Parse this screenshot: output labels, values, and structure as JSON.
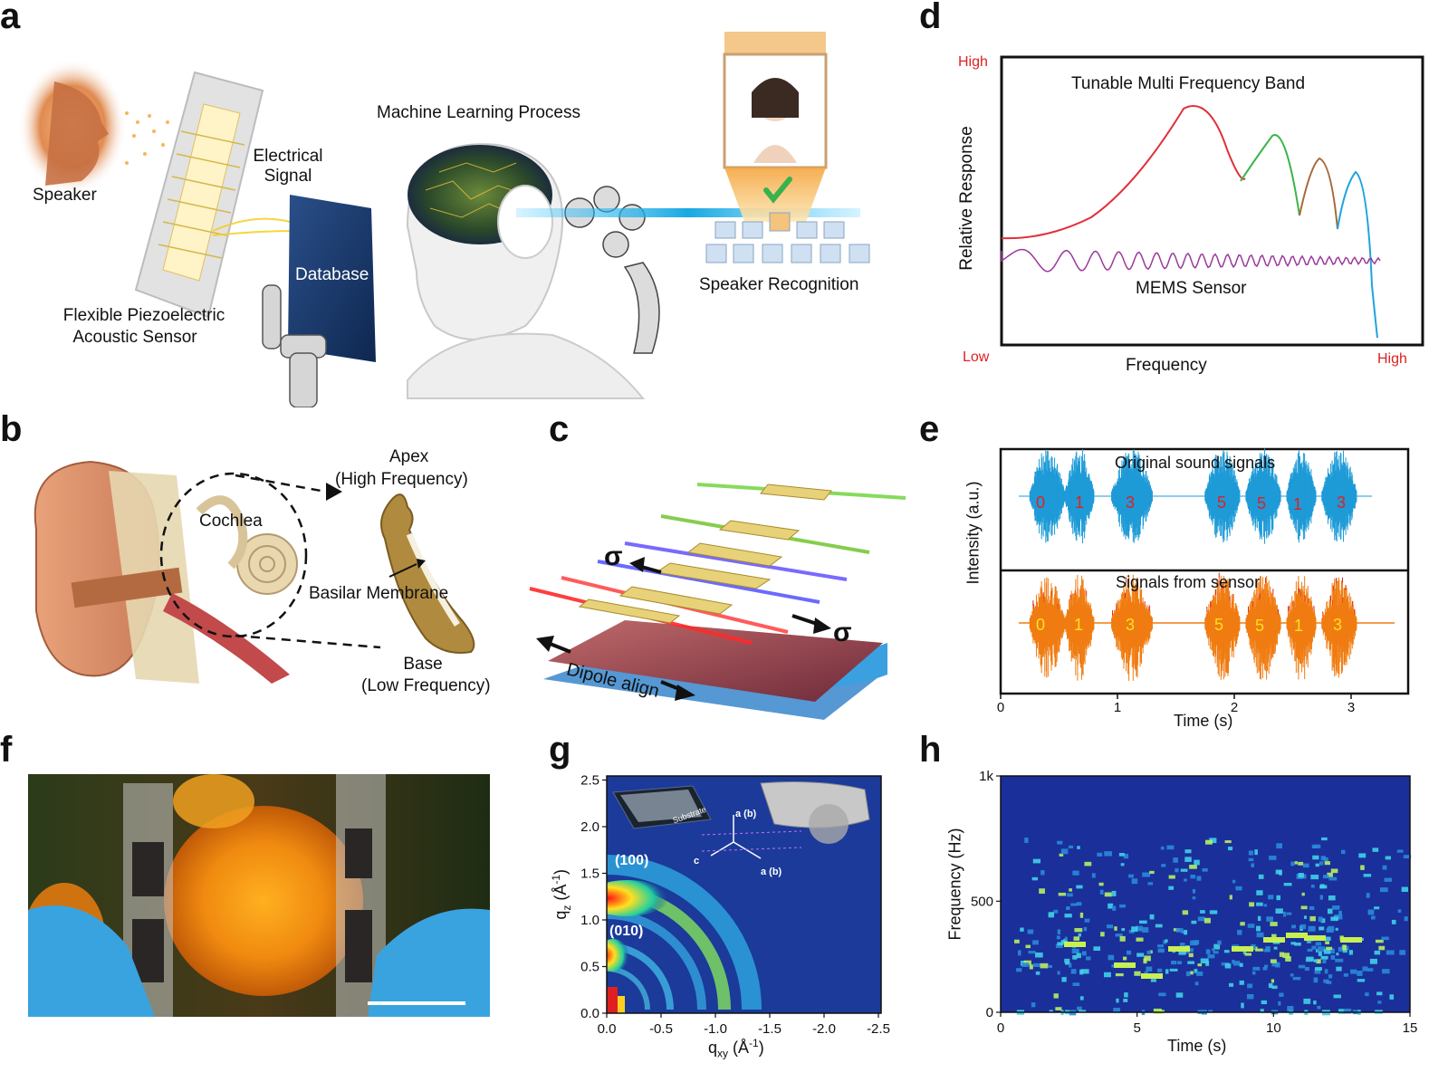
{
  "panels": {
    "a": {
      "letter": "a",
      "speaker": "Speaker",
      "sensor_line1": "Flexible Piezoelectric",
      "sensor_line2": "Acoustic Sensor",
      "signal_line1": "Electrical",
      "signal_line2": "Signal",
      "database": "Database",
      "ml": "Machine Learning Process",
      "recognition": "Speaker Recognition"
    },
    "b": {
      "letter": "b",
      "apex_line1": "Apex",
      "apex_line2": "(High Frequency)",
      "cochlea": "Cochlea",
      "basilar": "Basilar Membrane",
      "base_line1": "Base",
      "base_line2": "(Low Frequency)"
    },
    "c": {
      "letter": "c",
      "sigma_left": "σ",
      "sigma_right": "σ",
      "dipole": "Dipole align"
    },
    "d": {
      "letter": "d",
      "y_high": "High",
      "y_low": "Low",
      "x_high": "High",
      "ylabel": "Relative Response",
      "xlabel": "Frequency",
      "curve1": "Tunable Multi Frequency Band",
      "curve2": "MEMS Sensor"
    },
    "e": {
      "letter": "e",
      "top_title": "Original sound signals",
      "bottom_title": "Signals from sensor",
      "ylabel": "Intensity (a.u.)",
      "xlabel": "Time (s)",
      "xticks": [
        "0",
        "1",
        "2",
        "3"
      ],
      "digits": [
        "0",
        "1",
        "3",
        "5",
        "5",
        "1",
        "3"
      ],
      "color_original": "#1e9bd7",
      "color_sensor": "#f07c12"
    },
    "f": {
      "letter": "f"
    },
    "g": {
      "letter": "g",
      "ylabel": "q",
      "ylabel_sub": "z",
      "ylabel_unit": " (Å",
      "ylabel_sup": "-1",
      "ylabel_close": ")",
      "xlabel": "q",
      "xlabel_sub": "xy",
      "xlabel_unit": " (Å",
      "xlabel_sup": "-1",
      "xlabel_close": ")",
      "yticks": [
        "0.0",
        "0.5",
        "1.0",
        "1.5",
        "2.0",
        "2.5"
      ],
      "xticks": [
        "0.0",
        "-0.5",
        "-1.0",
        "-1.5",
        "-2.0",
        "-2.5"
      ],
      "peak100": "(100)",
      "peak010": "(010)",
      "inset_substrate": "Substrate",
      "axis_a": "a (b)",
      "axis_a2": "a (b)",
      "axis_c": "c"
    },
    "h": {
      "letter": "h",
      "ylabel": "Frequency (Hz)",
      "xlabel": "Time (s)",
      "yticks": [
        "0",
        "500",
        "1k"
      ],
      "xticks": [
        "0",
        "5",
        "10",
        "15"
      ]
    }
  }
}
